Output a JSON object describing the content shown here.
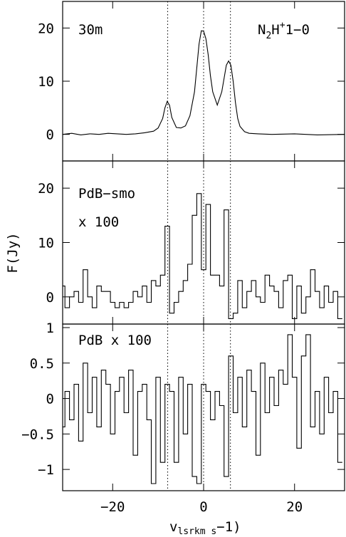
{
  "figure": {
    "ylabel": "F(Jy)",
    "xlabel_main": "v",
    "xlabel_sub": "lsrkm s",
    "xlabel_end": "−1)"
  },
  "chart_data": [
    {
      "type": "line",
      "panel_label": "30m",
      "line_label": {
        "base": "N",
        "sub": "2",
        "mid": "H",
        "sup": "+",
        "end": "1−0"
      },
      "xlim": [
        -31,
        31
      ],
      "ylim": [
        -5,
        25
      ],
      "yticks": [
        0,
        10,
        20
      ],
      "xticks": [
        -20,
        0,
        20
      ],
      "x": [
        -31,
        -29,
        -27,
        -25,
        -23,
        -21,
        -19,
        -17,
        -15,
        -13,
        -11,
        -10,
        -9,
        -8.5,
        -8,
        -7.5,
        -7,
        -6,
        -5,
        -4,
        -3,
        -2,
        -1.5,
        -1,
        -0.5,
        0,
        0.5,
        1,
        1.5,
        2,
        3,
        4,
        4.5,
        5,
        5.5,
        6,
        6.5,
        7,
        7.5,
        8,
        9,
        10,
        12,
        15,
        20,
        25,
        31
      ],
      "values": [
        0,
        0.2,
        -0.1,
        0.1,
        0,
        0.2,
        0.1,
        0,
        0.1,
        0.3,
        0.6,
        1.2,
        3,
        5,
        6.2,
        5.5,
        3.2,
        1.3,
        1.2,
        1.6,
        3.5,
        8,
        12.5,
        17,
        19.5,
        19.4,
        18,
        15,
        11,
        8,
        5.5,
        8,
        10.5,
        13,
        13.8,
        13,
        10,
        6,
        3,
        1.5,
        0.5,
        0.2,
        0.1,
        0,
        0.1,
        -0.1,
        0
      ],
      "vlines": [
        -7.9,
        0,
        5.9
      ]
    },
    {
      "type": "line",
      "panel_label": "PdB−smo",
      "panel_label_2": "x 100",
      "xlim": [
        -31,
        31
      ],
      "ylim": [
        -5,
        25
      ],
      "yticks": [
        0,
        10,
        20
      ],
      "x": [
        -31,
        -30,
        -29,
        -28,
        -27,
        -26,
        -25,
        -24,
        -23,
        -22,
        -21,
        -20,
        -19,
        -18,
        -17,
        -16,
        -15,
        -14,
        -13,
        -12,
        -11,
        -10,
        -9,
        -8,
        -7,
        -6,
        -5,
        -4,
        -3,
        -2,
        -1,
        0,
        1,
        2,
        3,
        4,
        5,
        6,
        7,
        8,
        9,
        10,
        11,
        12,
        13,
        14,
        15,
        16,
        17,
        18,
        19,
        20,
        21,
        22,
        23,
        24,
        25,
        26,
        27,
        28,
        29,
        30
      ],
      "values": [
        2,
        -2,
        0,
        1,
        -1,
        5,
        0,
        -2,
        2,
        1,
        1,
        -1,
        -2,
        -1,
        -2,
        -1,
        1,
        0,
        2,
        -1,
        3,
        2,
        4,
        13,
        -3,
        -1,
        1,
        3,
        6,
        15,
        19,
        5,
        17,
        4,
        4,
        2,
        16,
        -4,
        -3,
        3,
        -2,
        1,
        3,
        0,
        -1,
        4,
        2,
        1,
        -2,
        3,
        4,
        -4,
        2,
        -3,
        0,
        5,
        1,
        -2,
        2,
        -1,
        1,
        -4
      ]
    },
    {
      "type": "line",
      "panel_label": "PdB x 100",
      "xlim": [
        -31,
        31
      ],
      "ylim": [
        -1.3,
        1.05
      ],
      "yticks": [
        -1,
        -0.5,
        0,
        0.5,
        1
      ],
      "x": [
        -31,
        -30,
        -29,
        -28,
        -27,
        -26,
        -25,
        -24,
        -23,
        -22,
        -21,
        -20,
        -19,
        -18,
        -17,
        -16,
        -15,
        -14,
        -13,
        -12,
        -11,
        -10,
        -9,
        -8,
        -7,
        -6,
        -5,
        -4,
        -3,
        -2,
        -1,
        0,
        1,
        2,
        3,
        4,
        5,
        6,
        7,
        8,
        9,
        10,
        11,
        12,
        13,
        14,
        15,
        16,
        17,
        18,
        19,
        20,
        21,
        22,
        23,
        24,
        25,
        26,
        27,
        28,
        29,
        30
      ],
      "values": [
        -0.4,
        0.1,
        -0.3,
        0.2,
        -0.6,
        0.5,
        -0.2,
        0.3,
        -0.4,
        0.4,
        0.2,
        -0.5,
        0.1,
        0.3,
        -0.2,
        0.4,
        -0.8,
        0.1,
        0.2,
        -0.3,
        -1.2,
        0.3,
        -0.9,
        0.2,
        0.1,
        -0.9,
        0.3,
        -0.5,
        0.2,
        -1.1,
        -1.2,
        0.2,
        0.1,
        -0.3,
        0.1,
        -0.1,
        -1.1,
        0.6,
        -0.2,
        0.3,
        -0.4,
        0.4,
        0.1,
        -0.8,
        0.5,
        -0.2,
        0.3,
        -0.1,
        0.4,
        0.2,
        0.9,
        0.3,
        -0.7,
        0.6,
        0.9,
        -0.4,
        0.1,
        -0.5,
        0.3,
        -0.2,
        0.1,
        -0.9
      ]
    }
  ]
}
